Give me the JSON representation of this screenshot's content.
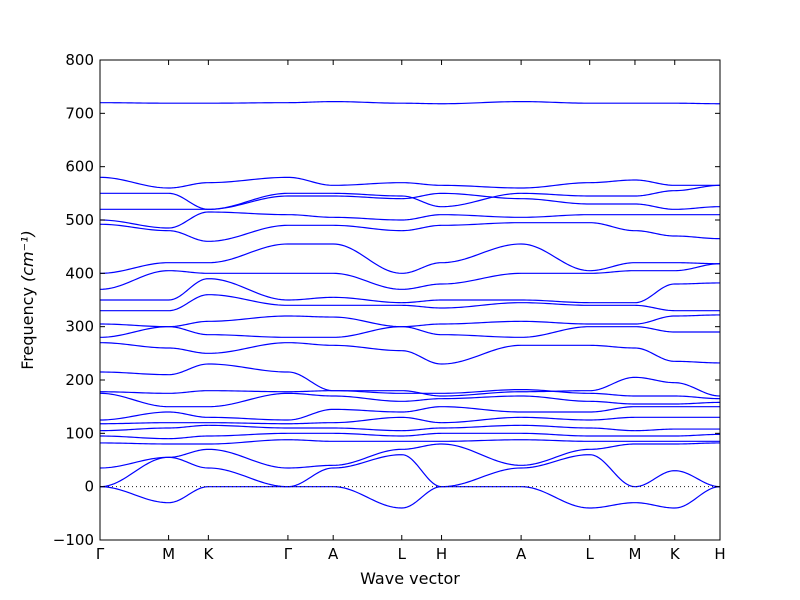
{
  "chart_data": {
    "type": "line",
    "title": "",
    "xlabel": "Wave vector",
    "ylabel": "Frequency",
    "ylabel_unit": "(cm⁻¹)",
    "ylim": [
      -100,
      800
    ],
    "yticks": [
      -100,
      0,
      100,
      200,
      300,
      400,
      500,
      600,
      700,
      800
    ],
    "grid": false,
    "legend": "none",
    "line_color": "#0000ff",
    "zero_line_color": "#1a1a1a",
    "high_symmetry_points": [
      {
        "label": "Γ",
        "x": 0.0
      },
      {
        "label": "M",
        "x": 1.0
      },
      {
        "label": "K",
        "x": 1.58
      },
      {
        "label": "Γ",
        "x": 2.74
      },
      {
        "label": "A",
        "x": 3.4
      },
      {
        "label": "L",
        "x": 4.4
      },
      {
        "label": "H",
        "x": 4.98
      },
      {
        "label": "A",
        "x": 6.14
      },
      {
        "label": "L",
        "x": 7.14
      },
      {
        "label": "M",
        "x": 7.8
      },
      {
        "label": "K",
        "x": 8.38
      },
      {
        "label": "H",
        "x": 9.04
      }
    ],
    "xlim": [
      0,
      9.04
    ],
    "series": [
      {
        "values": [
          720,
          719,
          719,
          720,
          722,
          719,
          718,
          722,
          719,
          719,
          719,
          718
        ]
      },
      {
        "values": [
          580,
          560,
          570,
          580,
          565,
          570,
          565,
          560,
          570,
          575,
          565,
          565
        ]
      },
      {
        "values": [
          550,
          550,
          520,
          550,
          550,
          545,
          525,
          550,
          545,
          545,
          555,
          565
        ]
      },
      {
        "values": [
          520,
          520,
          520,
          545,
          545,
          540,
          550,
          540,
          530,
          530,
          520,
          525
        ]
      },
      {
        "values": [
          500,
          485,
          515,
          510,
          505,
          500,
          510,
          505,
          510,
          510,
          510,
          510
        ]
      },
      {
        "values": [
          492,
          480,
          460,
          490,
          490,
          480,
          490,
          495,
          495,
          480,
          470,
          465
        ]
      },
      {
        "values": [
          400,
          420,
          420,
          455,
          455,
          400,
          420,
          455,
          405,
          420,
          420,
          418
        ]
      },
      {
        "values": [
          370,
          405,
          400,
          400,
          400,
          370,
          380,
          400,
          400,
          405,
          405,
          418
        ]
      },
      {
        "values": [
          350,
          350,
          390,
          350,
          355,
          345,
          350,
          350,
          345,
          345,
          380,
          382
        ]
      },
      {
        "values": [
          330,
          330,
          360,
          340,
          340,
          340,
          335,
          345,
          340,
          340,
          330,
          330
        ]
      },
      {
        "values": [
          305,
          300,
          310,
          320,
          318,
          300,
          305,
          310,
          305,
          305,
          320,
          322
        ]
      },
      {
        "values": [
          280,
          300,
          285,
          280,
          280,
          300,
          285,
          280,
          300,
          300,
          290,
          290
        ]
      },
      {
        "values": [
          270,
          260,
          250,
          270,
          265,
          255,
          230,
          265,
          265,
          260,
          235,
          232
        ]
      },
      {
        "values": [
          215,
          210,
          230,
          215,
          180,
          180,
          170,
          178,
          180,
          205,
          195,
          170
        ]
      },
      {
        "values": [
          178,
          175,
          180,
          178,
          180,
          175,
          175,
          182,
          175,
          170,
          170,
          165
        ]
      },
      {
        "values": [
          175,
          150,
          150,
          175,
          170,
          160,
          165,
          170,
          160,
          155,
          155,
          158
        ]
      },
      {
        "values": [
          125,
          140,
          130,
          125,
          145,
          140,
          150,
          140,
          140,
          150,
          150,
          150
        ]
      },
      {
        "values": [
          118,
          120,
          120,
          118,
          120,
          130,
          120,
          130,
          125,
          130,
          130,
          130
        ]
      },
      {
        "values": [
          105,
          110,
          115,
          110,
          110,
          105,
          110,
          115,
          110,
          105,
          108,
          108
        ]
      },
      {
        "values": [
          95,
          90,
          95,
          100,
          100,
          95,
          100,
          100,
          95,
          95,
          95,
          98
        ]
      },
      {
        "values": [
          82,
          80,
          80,
          88,
          85,
          85,
          85,
          88,
          85,
          85,
          85,
          85
        ]
      },
      {
        "values": [
          35,
          55,
          70,
          35,
          40,
          70,
          80,
          40,
          70,
          80,
          80,
          82
        ]
      },
      {
        "values": [
          0,
          55,
          35,
          0,
          35,
          60,
          0,
          35,
          60,
          0,
          30,
          0
        ]
      },
      {
        "values": [
          0,
          -30,
          0,
          0,
          0,
          -40,
          0,
          0,
          -40,
          -30,
          -40,
          0
        ]
      }
    ]
  }
}
